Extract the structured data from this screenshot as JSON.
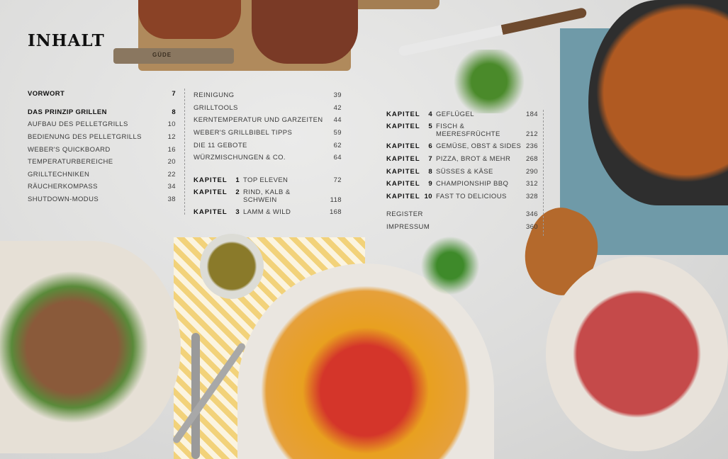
{
  "title": "INHALT",
  "col1": [
    {
      "label": "VORWORT",
      "page": "7",
      "bold": true
    },
    {
      "label": "DAS PRINZIP GRILLEN",
      "page": "8",
      "bold": true
    },
    {
      "label": "AUFBAU DES PELLETGRILLS",
      "page": "10"
    },
    {
      "label": "BEDIENUNG DES PELLETGRILLS",
      "page": "12"
    },
    {
      "label": "WEBER'S QUICKBOARD",
      "page": "16"
    },
    {
      "label": "TEMPERATURBEREICHE",
      "page": "20"
    },
    {
      "label": "GRILLTECHNIKEN",
      "page": "22"
    },
    {
      "label": "RÄUCHERKOMPASS",
      "page": "34"
    },
    {
      "label": "SHUTDOWN-MODUS",
      "page": "38"
    }
  ],
  "col2": [
    {
      "label": "REINIGUNG",
      "page": "39"
    },
    {
      "label": "GRILLTOOLS",
      "page": "42"
    },
    {
      "label": "KERNTEMPERATUR UND GARZEITEN",
      "page": "44"
    },
    {
      "label": "WEBER'S GRILLBIBEL TIPPS",
      "page": "59"
    },
    {
      "label": "DIE 11 GEBOTE",
      "page": "62"
    },
    {
      "label": "WÜRZMISCHUNGEN & CO.",
      "page": "64"
    }
  ],
  "kapitel_word": "KAPITEL",
  "chapters": [
    {
      "num": "1",
      "title": "TOP ELEVEN",
      "page": "72"
    },
    {
      "num": "2",
      "title": "RIND, KALB &",
      "title2": "SCHWEIN",
      "page": "118"
    },
    {
      "num": "3",
      "title": "LAMM & WILD",
      "page": "168"
    },
    {
      "num": "4",
      "title": "GEFLÜGEL",
      "page": "184"
    },
    {
      "num": "5",
      "title": "FISCH &",
      "title2": "MEERESFRÜCHTE",
      "page": "212"
    },
    {
      "num": "6",
      "title": "GEMÜSE, OBST & SIDES",
      "page": "236"
    },
    {
      "num": "7",
      "title": "PIZZA, BROT & MEHR",
      "page": "268"
    },
    {
      "num": "8",
      "title": "SÜSSES & KÄSE",
      "page": "290"
    },
    {
      "num": "9",
      "title": "CHAMPIONSHIP BBQ",
      "page": "312"
    },
    {
      "num": "10",
      "title": "FAST TO DELICIOUS",
      "page": "328"
    }
  ],
  "col3_end": [
    {
      "label": "REGISTER",
      "page": "346"
    },
    {
      "label": "IMPRESSUM",
      "page": "360"
    }
  ],
  "knife_brand": "GÜDE"
}
